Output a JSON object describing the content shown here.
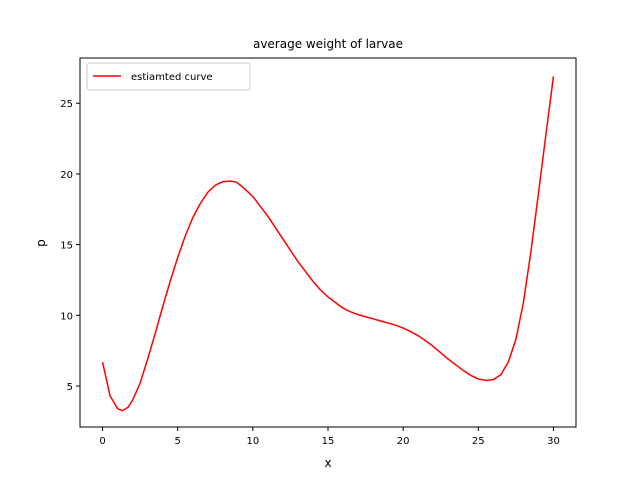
{
  "chart_data": {
    "type": "line",
    "title": "average weight of larvae",
    "xlabel": "x",
    "ylabel": "p",
    "xlim": [
      -1.5,
      31.5
    ],
    "ylim": [
      2.1,
      28.2
    ],
    "xticks": [
      0,
      5,
      10,
      15,
      20,
      25,
      30
    ],
    "yticks": [
      5,
      10,
      15,
      20,
      25
    ],
    "grid": false,
    "legend_position": "upper left",
    "series": [
      {
        "name": "estiamted curve",
        "color": "#ff0000",
        "x": [
          0,
          0.5,
          1,
          1.3,
          1.7,
          2,
          2.5,
          3,
          3.5,
          4,
          4.5,
          5,
          5.5,
          6,
          6.5,
          7,
          7.5,
          8,
          8.5,
          8.8,
          9,
          9.5,
          10,
          10.5,
          11,
          11.5,
          12,
          12.5,
          13,
          13.5,
          14,
          14.5,
          15,
          15.5,
          16,
          16.5,
          17,
          17.5,
          18,
          18.5,
          19,
          19.5,
          20,
          20.5,
          21,
          21.5,
          22,
          22.5,
          23,
          23.5,
          24,
          24.5,
          25,
          25.5,
          26,
          26.5,
          27,
          27.5,
          28,
          28.5,
          29,
          29.5,
          30
        ],
        "y": [
          6.7,
          4.3,
          3.4,
          3.25,
          3.5,
          4.0,
          5.2,
          6.9,
          8.7,
          10.6,
          12.4,
          14.1,
          15.6,
          16.9,
          17.9,
          18.7,
          19.2,
          19.45,
          19.5,
          19.45,
          19.35,
          18.9,
          18.4,
          17.7,
          17.0,
          16.2,
          15.4,
          14.6,
          13.8,
          13.1,
          12.4,
          11.8,
          11.3,
          10.9,
          10.5,
          10.25,
          10.05,
          9.9,
          9.75,
          9.6,
          9.45,
          9.3,
          9.1,
          8.85,
          8.55,
          8.2,
          7.8,
          7.35,
          6.9,
          6.5,
          6.1,
          5.75,
          5.5,
          5.4,
          5.45,
          5.8,
          6.7,
          8.3,
          10.9,
          14.5,
          18.6,
          22.8,
          26.9
        ]
      }
    ]
  }
}
